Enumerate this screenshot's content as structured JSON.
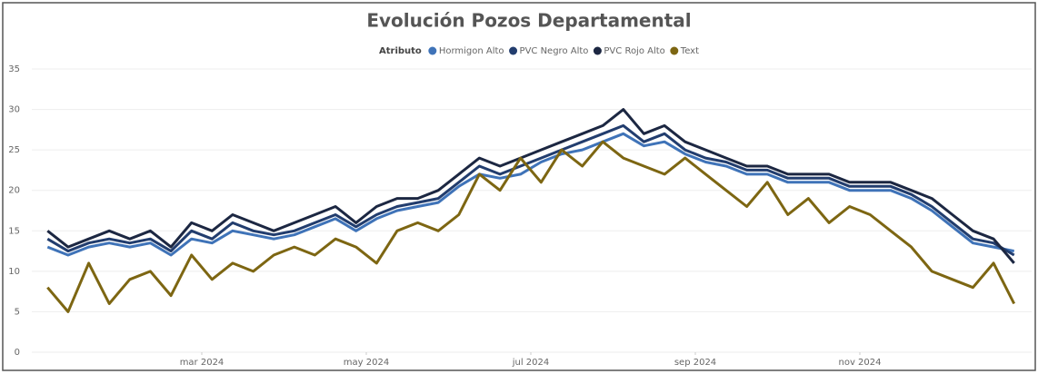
{
  "chart_data": {
    "type": "line",
    "title": "Evolución Pozos Departamental",
    "legend_title": "Atributo",
    "x": [
      "2024-01",
      "2024-01",
      "2024-01",
      "2024-01",
      "2024-02",
      "2024-02",
      "2024-02",
      "2024-02",
      "2024-03",
      "2024-03",
      "2024-03",
      "2024-03",
      "2024-04",
      "2024-04",
      "2024-04",
      "2024-04",
      "2024-05",
      "2024-05",
      "2024-05",
      "2024-05",
      "2024-06",
      "2024-06",
      "2024-06",
      "2024-06",
      "2024-07",
      "2024-07",
      "2024-07",
      "2024-07",
      "2024-08",
      "2024-08",
      "2024-08",
      "2024-08",
      "2024-09",
      "2024-09",
      "2024-09",
      "2024-09",
      "2024-10",
      "2024-10",
      "2024-10",
      "2024-10",
      "2024-11",
      "2024-11",
      "2024-11",
      "2024-11",
      "2024-12",
      "2024-12",
      "2024-12",
      "2024-12"
    ],
    "xlim": [
      "2024-01",
      "2025-01"
    ],
    "xticks": [
      {
        "value": "2024-03",
        "label": "mar 2024"
      },
      {
        "value": "2024-05",
        "label": "may 2024"
      },
      {
        "value": "2024-07",
        "label": "jul 2024"
      },
      {
        "value": "2024-09",
        "label": "sep 2024"
      },
      {
        "value": "2024-11",
        "label": "nov 2024"
      }
    ],
    "ylim": [
      0,
      35
    ],
    "yticks": [
      0,
      5,
      10,
      15,
      20,
      25,
      30,
      35
    ],
    "grid": true,
    "legend": "top",
    "series": [
      {
        "name": "Hormigon Alto",
        "color": "#3f73b8",
        "values": [
          13,
          12,
          13,
          13.5,
          13,
          13.5,
          12,
          14,
          13.5,
          15,
          14.5,
          14,
          14.5,
          15.5,
          16.5,
          15,
          16.5,
          17.5,
          18,
          18.5,
          20.5,
          22,
          21.5,
          22,
          23.5,
          24.5,
          25,
          26,
          27,
          25.5,
          26,
          24.5,
          23.5,
          23,
          22,
          22,
          21,
          21,
          21,
          20,
          20,
          20,
          19,
          17.5,
          15.5,
          13.5,
          13,
          12.5
        ]
      },
      {
        "name": "PVC Negro Alto",
        "color": "#223d6e",
        "values": [
          14,
          12.5,
          13.5,
          14,
          13.5,
          14,
          12.5,
          15,
          14,
          16,
          15,
          14.5,
          15,
          16,
          17,
          15.5,
          17,
          18,
          18.5,
          19,
          21,
          23,
          22,
          23,
          24,
          25,
          26,
          27,
          28,
          26,
          27,
          25,
          24,
          23.5,
          22.5,
          22.5,
          21.5,
          21.5,
          21.5,
          20.5,
          20.5,
          20.5,
          19.5,
          18,
          16,
          14,
          13.5,
          12
        ]
      },
      {
        "name": "PVC Rojo Alto",
        "color": "#1c2742",
        "values": [
          15,
          13,
          14,
          15,
          14,
          15,
          13,
          16,
          15,
          17,
          16,
          15,
          16,
          17,
          18,
          16,
          18,
          19,
          19,
          20,
          22,
          24,
          23,
          24,
          25,
          26,
          27,
          28,
          30,
          27,
          28,
          26,
          25,
          24,
          23,
          23,
          22,
          22,
          22,
          21,
          21,
          21,
          20,
          19,
          17,
          15,
          14,
          11
        ]
      },
      {
        "name": "Text",
        "color": "#7d6612",
        "values": [
          8,
          5,
          11,
          6,
          9,
          10,
          7,
          12,
          9,
          11,
          10,
          12,
          13,
          12,
          14,
          13,
          11,
          15,
          16,
          15,
          17,
          22,
          20,
          24,
          21,
          25,
          23,
          26,
          24,
          23,
          22,
          24,
          22,
          20,
          18,
          21,
          17,
          19,
          16,
          18,
          17,
          15,
          13,
          10,
          9,
          8,
          11,
          6
        ]
      }
    ]
  }
}
